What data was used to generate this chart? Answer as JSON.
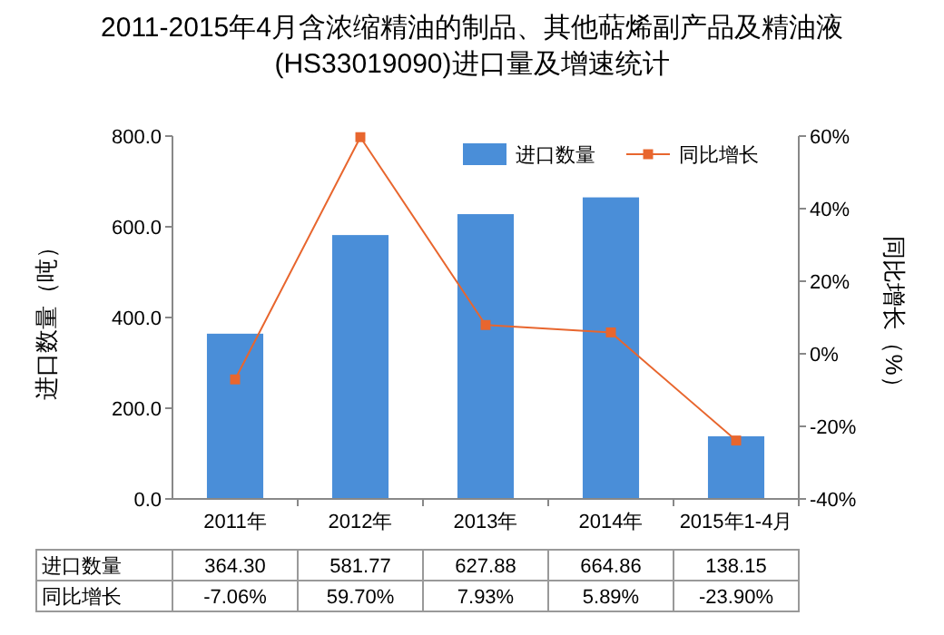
{
  "chart_data": {
    "type": "bar",
    "title": "2011-2015年4月含浓缩精油的制品、其他萜烯副产品及精油液(HS33019090)进口量及增速统计",
    "categories": [
      "2011年",
      "2012年",
      "2013年",
      "2014年",
      "2015年1-4月"
    ],
    "series": [
      {
        "name": "进口数量",
        "color": "#4a8ed8",
        "values": [
          364.3,
          581.77,
          627.88,
          664.86,
          138.15
        ],
        "value_labels": [
          "364.30",
          "581.77",
          "627.88",
          "664.86",
          "138.15"
        ]
      },
      {
        "name": "同比增长",
        "type": "line",
        "axis": "y2",
        "color": "#e8662e",
        "marker": "square",
        "values": [
          -7.06,
          59.7,
          7.93,
          5.89,
          -23.9
        ],
        "value_labels": [
          "-7.06%",
          "59.70%",
          "7.93%",
          "5.89%",
          "-23.90%"
        ]
      }
    ],
    "ylabel": "进口数量（吨）",
    "y2label": "同比增长（%）",
    "ylim": [
      0,
      800
    ],
    "yticks": [
      {
        "value": 0,
        "label": "0.0"
      },
      {
        "value": 200,
        "label": "200.0"
      },
      {
        "value": 400,
        "label": "400.0"
      },
      {
        "value": 600,
        "label": "600.0"
      },
      {
        "value": 800,
        "label": "800.0"
      }
    ],
    "y2lim": [
      -40,
      60
    ],
    "y2ticks": [
      {
        "value": -40,
        "label": "-40%"
      },
      {
        "value": -20,
        "label": "-20%"
      },
      {
        "value": 0,
        "label": "0%"
      },
      {
        "value": 20,
        "label": "20%"
      },
      {
        "value": 40,
        "label": "40%"
      },
      {
        "value": 60,
        "label": "60%"
      }
    ],
    "legend": "top right",
    "grid": false
  }
}
